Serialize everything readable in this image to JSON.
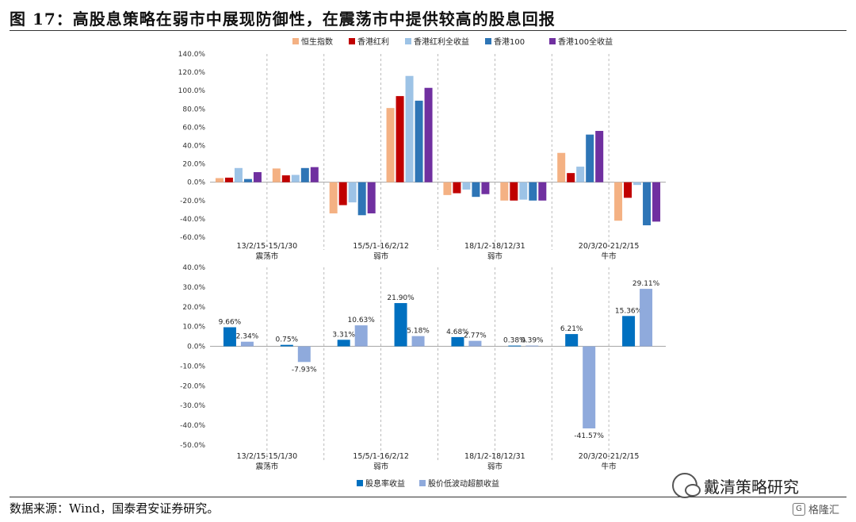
{
  "header": {
    "title": "图 17：高股息策略在弱市中展现防御性，在震荡市中提供较高的股息回报"
  },
  "footer": {
    "source": "数据来源：Wind，国泰君安证券研究。"
  },
  "watermark": {
    "text": "戴清策略研究",
    "badge": "格隆汇"
  },
  "chart_data": [
    {
      "type": "bar",
      "categories": [
        "13/2/15-15/1/30\n震荡市",
        "",
        "15/5/1-16/2/12\n弱市",
        "",
        "18/1/2-18/12/31\n弱市",
        "",
        "20/3/20-21/2/15\n牛市",
        ""
      ],
      "category_labels": [
        {
          "period": "13/2/15-15/1/30",
          "regime": "震荡市"
        },
        {
          "period": "",
          "regime": ""
        },
        {
          "period": "15/5/1-16/2/12",
          "regime": "弱市"
        },
        {
          "period": "",
          "regime": ""
        },
        {
          "period": "18/1/2-18/12/31",
          "regime": "弱市"
        },
        {
          "period": "",
          "regime": ""
        },
        {
          "period": "20/3/20-21/2/15",
          "regime": "牛市"
        },
        {
          "period": "",
          "regime": ""
        }
      ],
      "series": [
        {
          "name": "恒生指数",
          "color": "#F4B183",
          "values": [
            4.5,
            15,
            -34,
            81,
            -14,
            -20,
            32,
            -42
          ]
        },
        {
          "name": "香港红利",
          "color": "#C00000",
          "values": [
            5,
            7.5,
            -25,
            94,
            -12,
            -20,
            10,
            -17
          ]
        },
        {
          "name": "香港红利全收益",
          "color": "#9DC3E6",
          "values": [
            15.5,
            8,
            -22,
            116,
            -8,
            -19,
            17,
            -3
          ]
        },
        {
          "name": "香港100",
          "color": "#2E75B6",
          "values": [
            3.5,
            15.5,
            -36,
            89,
            -16,
            -20,
            52,
            -47
          ]
        },
        {
          "name": "香港100全收益",
          "color": "#7030A0",
          "values": [
            11,
            16.5,
            -34,
            103,
            -13,
            -20,
            56,
            -43
          ]
        }
      ],
      "ylim": [
        -60,
        140
      ],
      "yticks": [
        "140.0%",
        "120.0%",
        "100.0%",
        "80.0%",
        "60.0%",
        "40.0%",
        "20.0%",
        "0.0%",
        "-20.0%",
        "-40.0%",
        "-60.0%"
      ],
      "legend": "top"
    },
    {
      "type": "bar",
      "category_labels": [
        {
          "period": "13/2/15-15/1/30",
          "regime": "震荡市"
        },
        {
          "period": "",
          "regime": ""
        },
        {
          "period": "15/5/1-16/2/12",
          "regime": "弱市"
        },
        {
          "period": "",
          "regime": ""
        },
        {
          "period": "18/1/2-18/12/31",
          "regime": "弱市"
        },
        {
          "period": "",
          "regime": ""
        },
        {
          "period": "20/3/20-21/2/15",
          "regime": "牛市"
        },
        {
          "period": "",
          "regime": ""
        }
      ],
      "series": [
        {
          "name": "股息率收益",
          "color": "#0070C0",
          "values": [
            9.66,
            0.75,
            3.31,
            21.9,
            4.68,
            0.38,
            6.21,
            15.36
          ],
          "labels": [
            "9.66%",
            "0.75%",
            "3.31%",
            "21.90%",
            "4.68%",
            "0.38%",
            "6.21%",
            "15.36%"
          ]
        },
        {
          "name": "股价低波动超额收益",
          "color": "#8FAADC",
          "values": [
            2.34,
            -7.93,
            10.63,
            5.18,
            2.77,
            0.39,
            -41.57,
            29.11
          ],
          "labels": [
            "2.34%",
            "-7.93%",
            "10.63%",
            "5.18%",
            "2.77%",
            "0.39%",
            "-41.57%",
            "29.11%"
          ]
        }
      ],
      "ylim": [
        -50,
        40
      ],
      "yticks": [
        "40.0%",
        "30.0%",
        "20.0%",
        "10.0%",
        "0.0%",
        "-10.0%",
        "-20.0%",
        "-30.0%",
        "-40.0%",
        "-50.0%"
      ],
      "legend": "bottom"
    }
  ]
}
